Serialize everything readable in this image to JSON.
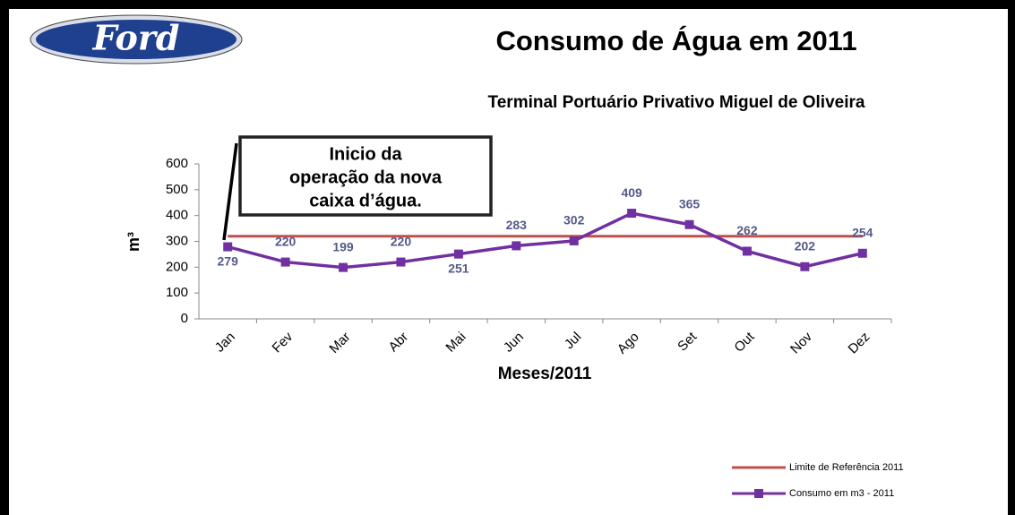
{
  "logo": "Ford",
  "chart_data": {
    "type": "line",
    "title": "Consumo de Água em 2011",
    "subtitle": "Terminal Portuário Privativo Miguel de Oliveira",
    "ylabel": "m³",
    "xlabel": "Meses/2011",
    "annotation": [
      "Inicio da",
      "operação da nova",
      "caixa d’água."
    ],
    "categories": [
      "Jan",
      "Fev",
      "Mar",
      "Abr",
      "Mai",
      "Jun",
      "Jul",
      "Ago",
      "Set",
      "Out",
      "Nov",
      "Dez"
    ],
    "series": [
      {
        "name": "Limite de Referência 2011",
        "color": "#c0504d",
        "values": [
          320,
          320,
          320,
          320,
          320,
          320,
          320,
          320,
          320,
          320,
          320,
          320
        ]
      },
      {
        "name": "Consumo em m3 - 2011",
        "color": "#7030a0",
        "values": [
          279,
          220,
          199,
          220,
          251,
          283,
          302,
          409,
          365,
          262,
          202,
          254
        ],
        "data_labels": true
      }
    ],
    "ylim": [
      0,
      600
    ],
    "yticks": [
      0,
      100,
      200,
      300,
      400,
      500,
      600
    ]
  }
}
